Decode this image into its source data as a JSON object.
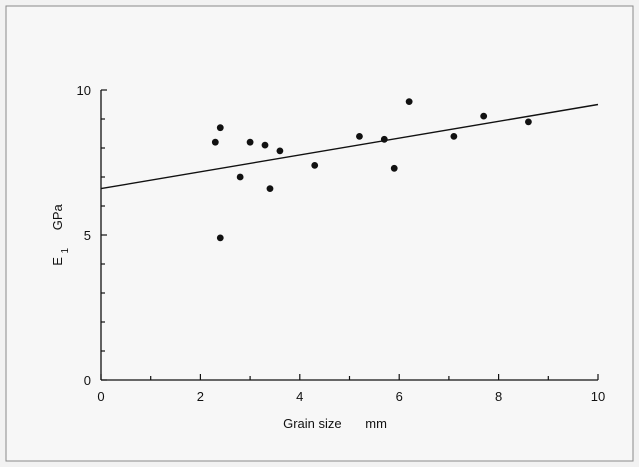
{
  "chart_data": {
    "type": "scatter",
    "xlabel": "Grain size",
    "xunit": "mm",
    "ylabel": "E",
    "ylabel_sub": "1",
    "yunit": "GPa",
    "xlim": [
      0,
      10
    ],
    "ylim": [
      0,
      10
    ],
    "x_ticks": [
      0,
      2,
      4,
      6,
      8,
      10
    ],
    "y_ticks": [
      0,
      5,
      10
    ],
    "grid": false,
    "points": [
      {
        "x": 2.3,
        "y": 8.2
      },
      {
        "x": 2.4,
        "y": 8.7
      },
      {
        "x": 2.4,
        "y": 4.9
      },
      {
        "x": 2.8,
        "y": 7.0
      },
      {
        "x": 3.0,
        "y": 8.2
      },
      {
        "x": 3.3,
        "y": 8.1
      },
      {
        "x": 3.4,
        "y": 6.6
      },
      {
        "x": 3.6,
        "y": 7.9
      },
      {
        "x": 4.3,
        "y": 7.4
      },
      {
        "x": 5.2,
        "y": 8.4
      },
      {
        "x": 5.7,
        "y": 8.3
      },
      {
        "x": 5.9,
        "y": 7.3
      },
      {
        "x": 6.2,
        "y": 9.6
      },
      {
        "x": 7.1,
        "y": 8.4
      },
      {
        "x": 7.7,
        "y": 9.1
      },
      {
        "x": 8.6,
        "y": 8.9
      }
    ],
    "trendline": {
      "x": [
        0,
        10
      ],
      "y": [
        6.6,
        9.5
      ]
    }
  }
}
